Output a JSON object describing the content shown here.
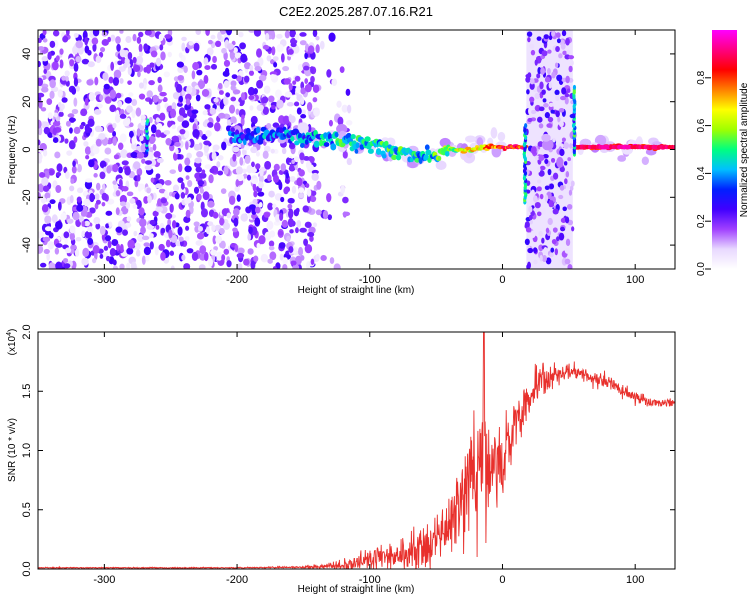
{
  "figure_title": "C2E2.2025.287.07.16.R21",
  "chart_data": [
    {
      "type": "heatmap",
      "title": "C2E2.2025.287.07.16.R21",
      "xlabel": "Height of straight line (km)",
      "ylabel": "Frequency (Hz)",
      "xlim": [
        -350,
        130
      ],
      "ylim": [
        -50,
        50
      ],
      "xticks": [
        -300,
        -200,
        -100,
        0,
        100
      ],
      "yticks": [
        -40,
        -20,
        0,
        20,
        40
      ],
      "xtick_labels": [
        "-300",
        "-200",
        "-100",
        "0",
        "100"
      ],
      "ytick_labels": [
        "-40",
        "-20",
        "0",
        "20",
        "40"
      ],
      "colorbar": {
        "label": "Normalized spectral amplitude",
        "range": [
          0.0,
          1.0
        ],
        "ticks": [
          0.0,
          0.2,
          0.4,
          0.6,
          0.8
        ],
        "tick_labels": [
          "0.0",
          "0.2",
          "0.4",
          "0.6",
          "0.8"
        ],
        "colors": [
          "#ffffff",
          "#e8d8ff",
          "#a040ff",
          "#4000ff",
          "#0020ff",
          "#00c0ff",
          "#00ff80",
          "#a0ff00",
          "#ffff00",
          "#ff8000",
          "#ff0000",
          "#ff0080",
          "#ff00ff"
        ]
      },
      "features": {
        "noise_region_x": [
          -350,
          -140
        ],
        "gap_region_x": [
          -140,
          18
        ],
        "band_x": [
          18,
          53
        ],
        "main_trace": [
          {
            "x": -205,
            "y": 6,
            "amp": 0.3
          },
          {
            "x": -185,
            "y": 5,
            "amp": 0.35
          },
          {
            "x": -165,
            "y": 6,
            "amp": 0.35
          },
          {
            "x": -140,
            "y": 5,
            "amp": 0.4
          },
          {
            "x": -120,
            "y": 4,
            "amp": 0.45
          },
          {
            "x": -100,
            "y": 2,
            "amp": 0.45
          },
          {
            "x": -85,
            "y": 0,
            "amp": 0.45
          },
          {
            "x": -70,
            "y": -2,
            "amp": 0.45
          },
          {
            "x": -55,
            "y": -3,
            "amp": 0.45
          },
          {
            "x": -40,
            "y": 0,
            "amp": 0.55
          },
          {
            "x": -25,
            "y": 0,
            "amp": 0.65
          },
          {
            "x": -10,
            "y": 1,
            "amp": 0.75
          },
          {
            "x": 5,
            "y": 1,
            "amp": 0.8
          },
          {
            "x": 60,
            "y": 1,
            "amp": 0.9
          },
          {
            "x": 80,
            "y": 1,
            "amp": 0.85
          },
          {
            "x": 100,
            "y": 1,
            "amp": 0.85
          },
          {
            "x": 125,
            "y": 1,
            "amp": 0.85
          }
        ],
        "vertical_streaks": [
          {
            "x": -268,
            "y0": -1,
            "y1": 12
          },
          {
            "x": 17,
            "y0": -22,
            "y1": 10
          },
          {
            "x": 54,
            "y0": -2,
            "y1": 26
          }
        ]
      }
    },
    {
      "type": "line",
      "xlabel": "Height of straight line (km)",
      "ylabel": "SNR (10 * v/v)",
      "y_multiplier": "(x10",
      "y_multiplier_exp": "4",
      "y_multiplier_close": ")",
      "xlim": [
        -350,
        130
      ],
      "ylim": [
        0,
        2.0
      ],
      "xticks": [
        -300,
        -200,
        -100,
        0,
        100
      ],
      "yticks": [
        0.0,
        0.5,
        1.0,
        1.5,
        2.0
      ],
      "xtick_labels": [
        "-300",
        "-200",
        "-100",
        "0",
        "100"
      ],
      "ytick_labels": [
        "0.0",
        "0.5",
        "1.0",
        "1.5",
        "2.0"
      ],
      "series": [
        {
          "name": "SNR",
          "color": "#e8302c",
          "envelope": {
            "x": [
              -350,
              -200,
              -150,
              -120,
              -100,
              -80,
              -60,
              -45,
              -35,
              -25,
              -18,
              -10,
              0,
              10,
              20,
              30,
              40,
              50,
              60,
              70,
              80,
              90,
              100,
              110,
              120,
              130
            ],
            "mean": [
              0.01,
              0.01,
              0.015,
              0.03,
              0.08,
              0.12,
              0.18,
              0.28,
              0.45,
              0.75,
              0.9,
              0.8,
              0.9,
              1.2,
              1.45,
              1.6,
              1.65,
              1.65,
              1.65,
              1.6,
              1.6,
              1.5,
              1.45,
              1.4,
              1.4,
              1.4
            ],
            "spread": [
              0.005,
              0.005,
              0.01,
              0.05,
              0.12,
              0.15,
              0.2,
              0.25,
              0.35,
              0.5,
              0.6,
              0.5,
              0.4,
              0.3,
              0.22,
              0.15,
              0.1,
              0.08,
              0.08,
              0.08,
              0.08,
              0.07,
              0.06,
              0.05,
              0.04,
              0.04
            ]
          },
          "peak": {
            "x": -14,
            "y": 2.0
          }
        }
      ]
    }
  ]
}
